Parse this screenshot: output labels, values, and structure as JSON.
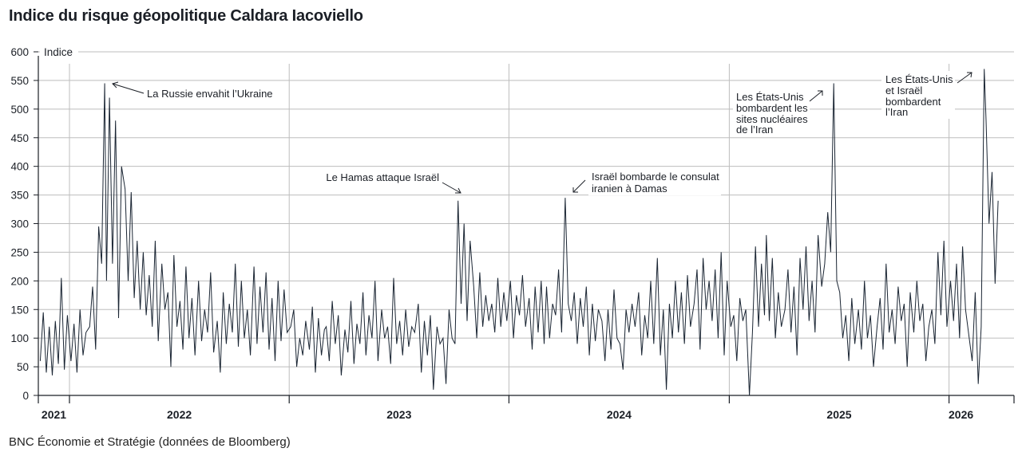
{
  "title": "Indice du risque géopolitique Caldara Iacoviello",
  "source": "BNC Économie et Stratégie (données de Bloomberg)",
  "chart_data": {
    "type": "line",
    "title": "Indice du risque géopolitique Caldara Iacoviello",
    "ylabel": "Indice",
    "xlabel": "",
    "ylim": [
      0,
      600
    ],
    "y_ticks": [
      0,
      50,
      100,
      150,
      200,
      250,
      300,
      350,
      400,
      450,
      500,
      550,
      600
    ],
    "x_tick_labels": [
      "2021",
      "2022",
      "2023",
      "2024",
      "2025",
      "2026"
    ],
    "grid": true,
    "line_color": "#1a2533",
    "series": [
      {
        "month": "2021-11",
        "values": [
          60,
          145,
          40,
          120
        ]
      },
      {
        "month": "2021-12",
        "values": [
          35,
          130,
          55,
          205,
          45,
          140
        ]
      },
      {
        "month": "2022-01",
        "values": [
          60,
          125,
          40,
          150,
          70,
          110
        ]
      },
      {
        "month": "2022-02",
        "values": [
          120,
          190,
          80,
          295,
          230,
          545
        ]
      },
      {
        "month": "2022-03",
        "values": [
          200,
          520,
          230,
          480,
          135,
          400
        ]
      },
      {
        "month": "2022-04",
        "values": [
          360,
          200,
          355,
          170,
          270,
          150
        ]
      },
      {
        "month": "2022-05",
        "values": [
          250,
          140,
          210,
          120,
          270,
          95
        ]
      },
      {
        "month": "2022-06",
        "values": [
          230,
          150,
          180,
          50,
          245,
          120
        ]
      },
      {
        "month": "2022-07",
        "values": [
          165,
          80,
          225,
          100,
          170,
          70
        ]
      },
      {
        "month": "2022-08",
        "values": [
          200,
          95,
          150,
          110,
          215,
          75
        ]
      },
      {
        "month": "2022-09",
        "values": [
          130,
          40,
          180,
          90,
          160,
          110
        ]
      },
      {
        "month": "2022-10",
        "values": [
          230,
          85,
          200,
          100,
          150,
          70
        ]
      },
      {
        "month": "2022-11",
        "values": [
          225,
          90,
          190,
          110,
          215,
          80
        ]
      },
      {
        "month": "2022-12",
        "values": [
          170,
          60,
          200,
          95,
          185,
          110
        ]
      },
      {
        "month": "2023-01",
        "values": [
          120,
          150,
          50,
          100,
          70,
          130
        ]
      },
      {
        "month": "2023-02",
        "values": [
          80,
          155,
          40,
          135,
          70,
          115
        ]
      },
      {
        "month": "2023-03",
        "values": [
          120,
          60,
          165,
          90,
          140,
          35
        ]
      },
      {
        "month": "2023-04",
        "values": [
          115,
          75,
          165,
          55,
          125,
          90
        ]
      },
      {
        "month": "2023-05",
        "values": [
          180,
          70,
          140,
          100,
          200,
          60
        ]
      },
      {
        "month": "2023-06",
        "values": [
          150,
          100,
          120,
          55,
          205,
          90
        ]
      },
      {
        "month": "2023-07",
        "values": [
          130,
          70,
          150,
          85,
          120,
          110
        ]
      },
      {
        "month": "2023-08",
        "values": [
          160,
          40,
          130,
          70,
          140,
          10
        ]
      },
      {
        "month": "2023-09",
        "values": [
          120,
          90,
          100,
          20,
          150,
          100
        ]
      },
      {
        "month": "2023-10",
        "values": [
          90,
          340,
          160,
          300,
          130,
          270
        ]
      },
      {
        "month": "2023-11",
        "values": [
          190,
          100,
          215,
          120,
          175,
          130
        ]
      },
      {
        "month": "2023-12",
        "values": [
          160,
          110,
          205,
          120,
          180,
          130
        ]
      },
      {
        "month": "2024-01",
        "values": [
          200,
          100,
          175,
          140,
          210,
          120
        ]
      },
      {
        "month": "2024-02",
        "values": [
          170,
          80,
          190,
          110,
          200,
          90
        ]
      },
      {
        "month": "2024-03",
        "values": [
          190,
          100,
          160,
          140,
          220,
          110
        ]
      },
      {
        "month": "2024-04",
        "values": [
          345,
          160,
          130,
          180,
          90,
          170
        ]
      },
      {
        "month": "2024-05",
        "values": [
          120,
          190,
          70,
          160,
          95,
          150
        ]
      },
      {
        "month": "2024-06",
        "values": [
          130,
          60,
          150,
          80,
          185,
          100
        ]
      },
      {
        "month": "2024-07",
        "values": [
          90,
          45,
          150,
          110,
          160,
          120
        ]
      },
      {
        "month": "2024-08",
        "values": [
          180,
          70,
          140,
          100,
          200,
          90
        ]
      },
      {
        "month": "2024-09",
        "values": [
          240,
          70,
          150,
          10,
          160,
          100
        ]
      },
      {
        "month": "2024-10",
        "values": [
          200,
          110,
          180,
          90,
          210,
          120
        ]
      },
      {
        "month": "2024-11",
        "values": [
          160,
          220,
          80,
          240,
          150,
          200
        ]
      },
      {
        "month": "2024-12",
        "values": [
          130,
          220,
          100,
          250,
          70,
          200
        ]
      },
      {
        "month": "2025-01",
        "values": [
          120,
          140,
          60,
          170,
          130,
          150
        ]
      },
      {
        "month": "2025-02",
        "values": [
          0,
          110,
          260,
          120,
          230,
          140
        ]
      },
      {
        "month": "2025-03",
        "values": [
          280,
          130,
          240,
          100,
          180,
          120
        ]
      },
      {
        "month": "2025-04",
        "values": [
          150,
          220,
          110,
          190,
          70,
          240
        ]
      },
      {
        "month": "2025-05",
        "values": [
          150,
          260,
          130,
          200,
          110,
          280
        ]
      },
      {
        "month": "2025-06",
        "values": [
          190,
          230,
          320,
          250,
          545,
          200
        ]
      },
      {
        "month": "2025-07",
        "values": [
          180,
          100,
          140,
          60,
          170,
          90
        ]
      },
      {
        "month": "2025-08",
        "values": [
          150,
          80,
          200,
          100,
          140,
          50
        ]
      },
      {
        "month": "2025-09",
        "values": [
          120,
          170,
          80,
          230,
          110,
          150
        ]
      },
      {
        "month": "2025-10",
        "values": [
          90,
          190,
          130,
          160,
          50,
          180
        ]
      },
      {
        "month": "2025-11",
        "values": [
          110,
          200,
          130,
          160,
          60,
          120
        ]
      },
      {
        "month": "2025-12",
        "values": [
          150,
          90,
          250,
          140,
          270,
          120
        ]
      },
      {
        "month": "2026-01",
        "values": [
          200,
          130,
          230,
          100,
          260,
          150
        ]
      },
      {
        "month": "2026-02",
        "values": [
          100,
          60,
          180,
          20,
          120,
          570
        ]
      },
      {
        "month": "2026-03",
        "values": [
          480,
          300,
          390,
          195,
          340
        ]
      }
    ],
    "annotations": [
      {
        "lines": [
          "La Russie envahit l’Ukraine"
        ]
      },
      {
        "lines": [
          "Le Hamas attaque Israël"
        ]
      },
      {
        "lines": [
          "Israël bombarde le consulat",
          "iranien à Damas"
        ]
      },
      {
        "lines": [
          "Les États-Unis",
          "bombardent les",
          "sites nucléaires",
          "de l’Iran"
        ]
      },
      {
        "lines": [
          "Les États-Unis",
          "et Israël",
          "bombardent",
          "l’Iran"
        ]
      }
    ]
  }
}
